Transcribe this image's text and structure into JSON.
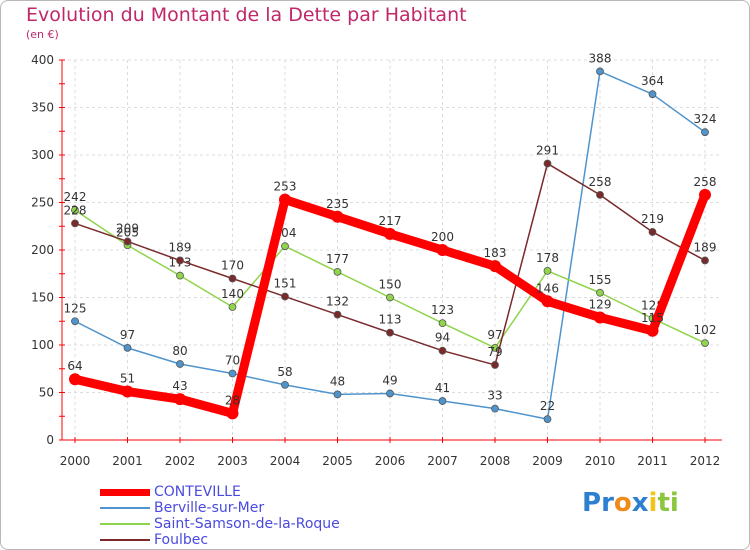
{
  "chart_data": {
    "type": "line",
    "title": "Evolution du Montant de la Dette par Habitant",
    "ylabel": "(en €)",
    "categories": [
      "2000",
      "2001",
      "2002",
      "2003",
      "2004",
      "2005",
      "2006",
      "2007",
      "2008",
      "2009",
      "2010",
      "2011",
      "2012"
    ],
    "ylim": [
      0,
      400
    ],
    "yticks": [
      0,
      50,
      100,
      150,
      200,
      250,
      300,
      350,
      400
    ],
    "series": [
      {
        "name": "Berville-sur-Mer",
        "color": "#4f94cc",
        "values": [
          125,
          97,
          80,
          70,
          58,
          48,
          49,
          41,
          33,
          22,
          388,
          364,
          324
        ]
      },
      {
        "name": "Saint-Samson-de-la-Roque",
        "color": "#8fd44a",
        "values": [
          242,
          205,
          173,
          140,
          204,
          177,
          150,
          123,
          97,
          178,
          155,
          128,
          102
        ]
      },
      {
        "name": "Foulbec",
        "color": "#7a2a2a",
        "values": [
          228,
          209,
          189,
          170,
          151,
          132,
          113,
          94,
          79,
          291,
          258,
          219,
          189
        ]
      },
      {
        "name": "CONTEVILLE",
        "color": "#ff0000",
        "values": [
          64,
          51,
          43,
          28,
          253,
          235,
          217,
          200,
          183,
          146,
          129,
          115,
          258
        ]
      }
    ],
    "legend": [
      "CONTEVILLE",
      "Berville-sur-Mer",
      "Saint-Samson-de-la-Roque",
      "Foulbec"
    ]
  },
  "logo": {
    "letters": [
      "P",
      "r",
      "o",
      "x",
      "i",
      "t",
      "i"
    ],
    "colors": [
      "#2d7fd0",
      "#2d7fd0",
      "#f08a1c",
      "#2d7fd0",
      "#f0c419",
      "#8cc63f",
      "#8cc63f"
    ]
  }
}
